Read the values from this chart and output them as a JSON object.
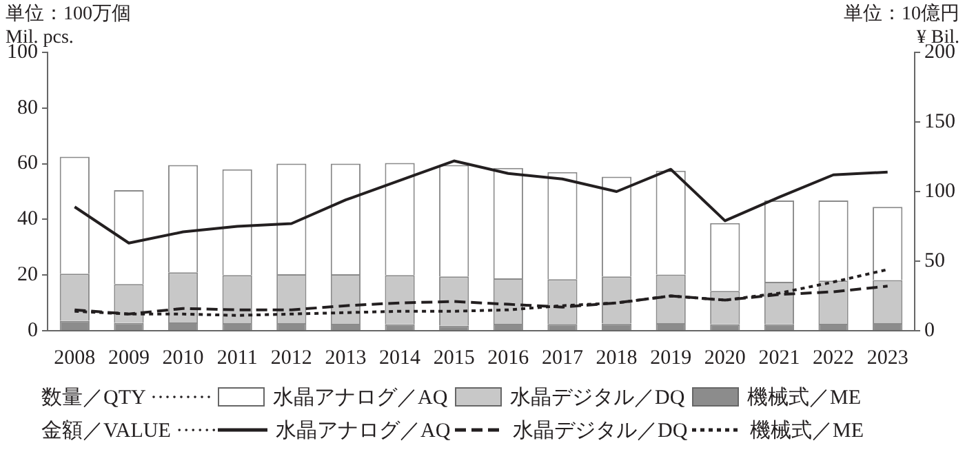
{
  "chart_data": {
    "type": "bar",
    "stacked": true,
    "ylabel": "単位：100万個\nMil. pcs.",
    "y2label": "単位：10億円\n¥ Bil.",
    "categories": [
      "2008",
      "2009",
      "2010",
      "2011",
      "2012",
      "2013",
      "2014",
      "2015",
      "2016",
      "2017",
      "2018",
      "2019",
      "2020",
      "2021",
      "2022",
      "2023"
    ],
    "ylim": [
      0,
      100
    ],
    "yticks": [
      0,
      20,
      40,
      60,
      80,
      100
    ],
    "y2lim": [
      0,
      200
    ],
    "y2ticks": [
      0,
      50,
      100,
      150,
      200
    ],
    "legend": "bottom",
    "annotations": [
      "数量／QTY ·········",
      "金額／VALUE ······"
    ],
    "series": [
      {
        "type": "bar",
        "name": "機械式／ME",
        "color": "#8c8c8c",
        "values": [
          3.5,
          2.8,
          3,
          2.7,
          2.7,
          2.5,
          2.3,
          1.8,
          2.5,
          2.4,
          2.6,
          2.7,
          2.3,
          2.3,
          2.5,
          2.7
        ]
      },
      {
        "type": "bar",
        "name": "水晶デジタル／DQ",
        "color": "#c8c8c8",
        "values": [
          17,
          14,
          18,
          17.3,
          17.6,
          17.8,
          17.7,
          17.7,
          16.3,
          16.1,
          16.9,
          17.5,
          12,
          15.3,
          15.5,
          15.5
        ]
      },
      {
        "type": "bar",
        "name": "水晶アナログ／AQ",
        "color": "#ffffff",
        "values": [
          42,
          33.7,
          38.5,
          38,
          39.7,
          39.7,
          40.3,
          40,
          39.7,
          38.5,
          35.8,
          37.3,
          24.4,
          29.2,
          28.8,
          26.3
        ]
      },
      {
        "type": "line",
        "axis": "y2",
        "name": "水晶アナログ／AQ",
        "color": "#231f20",
        "line_style": "solid",
        "values": [
          89,
          63,
          71,
          75,
          77,
          94,
          108,
          122,
          113,
          109,
          100,
          116,
          79,
          96,
          112,
          114
        ]
      },
      {
        "type": "line",
        "axis": "y2",
        "name": "水晶デジタル／DQ",
        "color": "#231f20",
        "line_style": "dashed",
        "values": [
          15,
          12,
          16,
          15,
          15,
          18,
          20,
          21,
          19,
          17,
          20,
          25,
          22,
          26,
          28,
          32
        ]
      },
      {
        "type": "line",
        "axis": "y2",
        "name": "機械式／ME",
        "color": "#231f20",
        "line_style": "dotted",
        "values": [
          14,
          12,
          12,
          11,
          12,
          13,
          14,
          14,
          15,
          18,
          20,
          25,
          22,
          27,
          35,
          44
        ]
      }
    ]
  }
}
